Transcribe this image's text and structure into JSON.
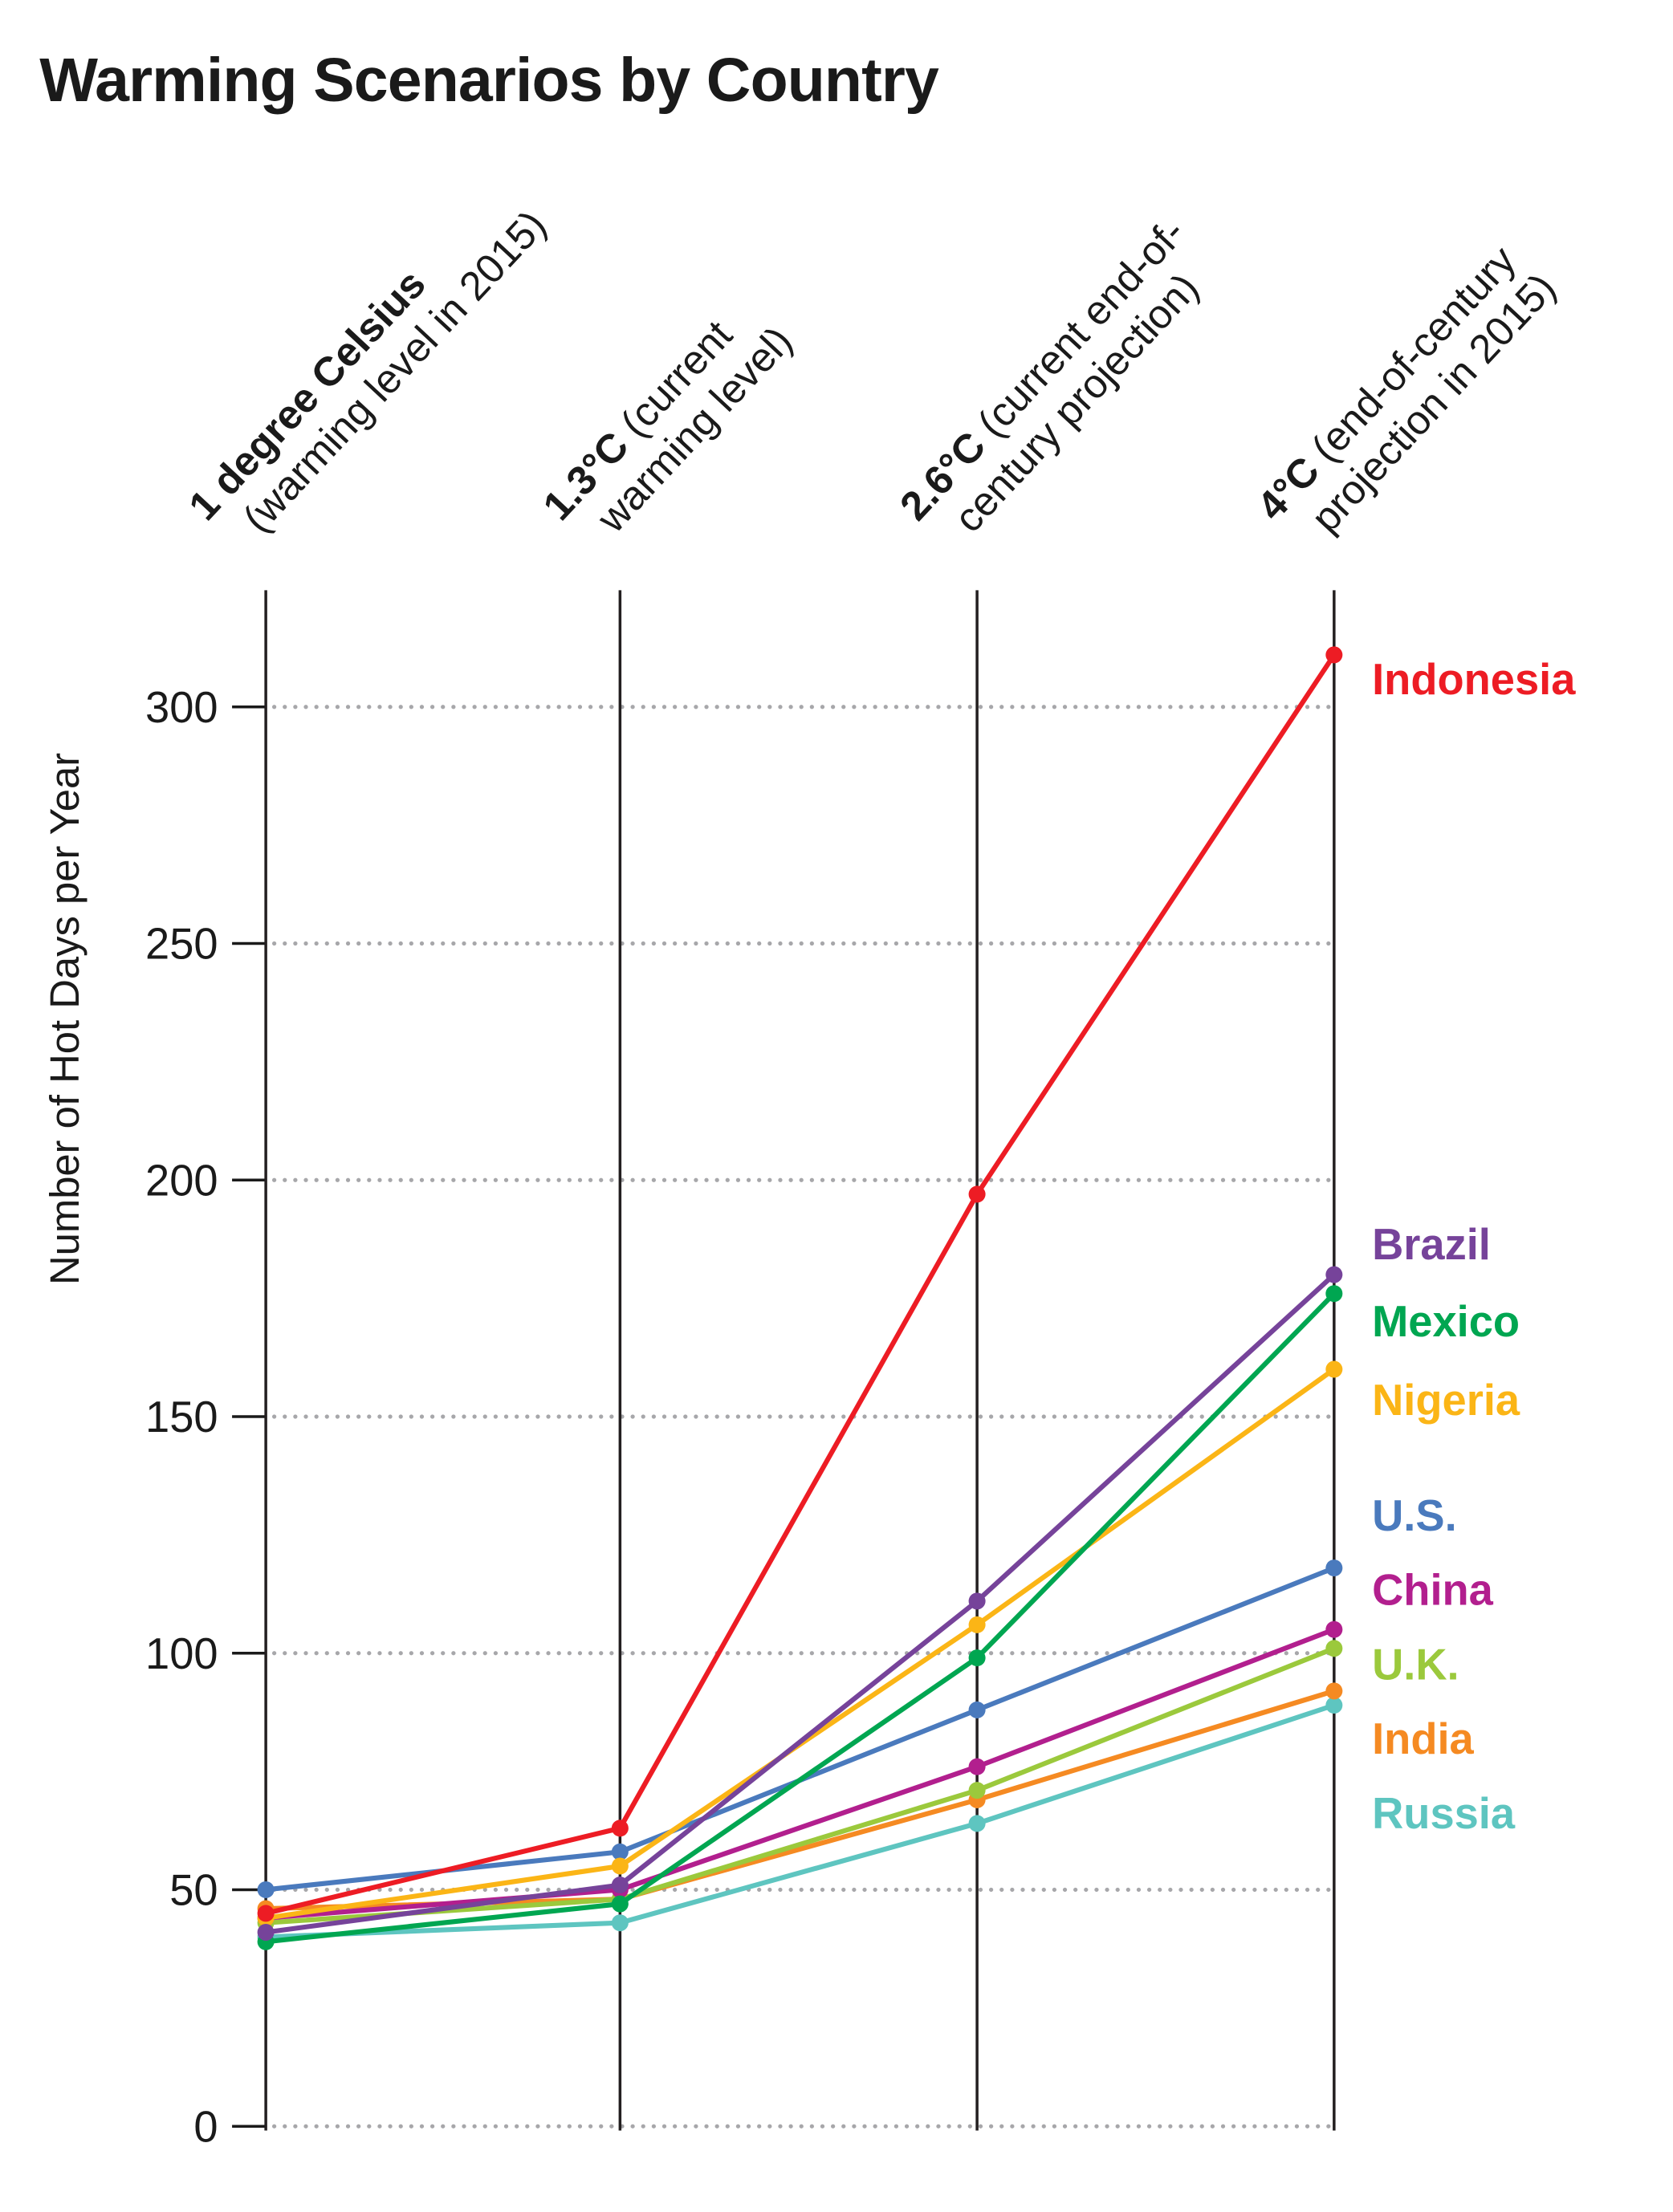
{
  "chart_data": {
    "type": "line",
    "title": "Warming Scenarios by Country",
    "ylabel": "Number of Hot Days per Year",
    "ylim": [
      0,
      320
    ],
    "yticks": [
      0,
      50,
      100,
      150,
      200,
      250,
      300
    ],
    "grid": "horizontal dotted",
    "legend": "direct labels at right",
    "categories": [
      {
        "bold": "1 degree Celsius",
        "rest": "",
        "line2": "(warming level in 2015)"
      },
      {
        "bold": "1.3°C",
        "rest": " (current",
        "line2": "warming level)"
      },
      {
        "bold": "2.6°C",
        "rest": " (current end-of-",
        "line2": "century projection)"
      },
      {
        "bold": "4°C",
        "rest": " (end-of-century",
        "line2": "projection in 2015)"
      }
    ],
    "series": [
      {
        "name": "Russia",
        "color": "#5ec5c0",
        "values": [
          40,
          43,
          64,
          89
        ]
      },
      {
        "name": "India",
        "color": "#f58a22",
        "values": [
          46,
          48,
          69,
          92
        ]
      },
      {
        "name": "U.K.",
        "color": "#9bc93c",
        "values": [
          43,
          48,
          71,
          101
        ]
      },
      {
        "name": "China",
        "color": "#b21f8e",
        "values": [
          44,
          50,
          76,
          105
        ]
      },
      {
        "name": "U.S.",
        "color": "#4a7abd",
        "values": [
          50,
          58,
          88,
          118
        ]
      },
      {
        "name": "Nigeria",
        "color": "#fbb516",
        "values": [
          44,
          55,
          106,
          160
        ]
      },
      {
        "name": "Mexico",
        "color": "#00a651",
        "values": [
          39,
          47,
          99,
          176
        ]
      },
      {
        "name": "Brazil",
        "color": "#76439a",
        "values": [
          41,
          51,
          111,
          180
        ]
      },
      {
        "name": "Indonesia",
        "color": "#ed1c24",
        "values": [
          45,
          63,
          197,
          311
        ]
      }
    ],
    "labels_order": [
      "Indonesia",
      "Brazil",
      "Mexico",
      "Nigeria",
      "U.S.",
      "China",
      "U.K.",
      "India",
      "Russia"
    ]
  }
}
